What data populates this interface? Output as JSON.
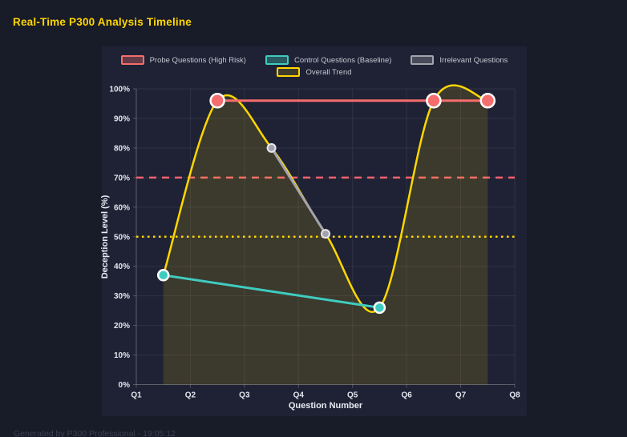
{
  "page": {
    "title": "Real-Time P300 Analysis Timeline",
    "footer": "Generated by P300 Professional - 19:05:12",
    "background": "#181b28",
    "panel_background": "#1f2234",
    "title_color": "#ffd700"
  },
  "chart_data": {
    "type": "line",
    "title": "Real-Time P300 Analysis Timeline",
    "xlabel": "Question Number",
    "ylabel": "Deception Level (%)",
    "xlim": [
      1,
      8
    ],
    "ylim": [
      0,
      100
    ],
    "grid": true,
    "legend_position": "top",
    "x_ticks": [
      {
        "value": 1,
        "label": "Q1"
      },
      {
        "value": 2,
        "label": "Q2"
      },
      {
        "value": 3,
        "label": "Q3"
      },
      {
        "value": 4,
        "label": "Q4"
      },
      {
        "value": 5,
        "label": "Q5"
      },
      {
        "value": 6,
        "label": "Q6"
      },
      {
        "value": 7,
        "label": "Q7"
      },
      {
        "value": 8,
        "label": "Q8"
      }
    ],
    "y_ticks": [
      {
        "value": 0,
        "label": "0%"
      },
      {
        "value": 10,
        "label": "10%"
      },
      {
        "value": 20,
        "label": "20%"
      },
      {
        "value": 30,
        "label": "30%"
      },
      {
        "value": 40,
        "label": "40%"
      },
      {
        "value": 50,
        "label": "50%"
      },
      {
        "value": 60,
        "label": "60%"
      },
      {
        "value": 70,
        "label": "70%"
      },
      {
        "value": 80,
        "label": "80%"
      },
      {
        "value": 90,
        "label": "90%"
      },
      {
        "value": 100,
        "label": "100%"
      }
    ],
    "series": [
      {
        "name": "Probe Questions (High Risk)",
        "color": "#f66d6d",
        "legend_fill": "rgba(246,109,109,0.32)",
        "points": [
          {
            "x": 2.5,
            "y": 96
          },
          {
            "x": 6.5,
            "y": 96
          },
          {
            "x": 7.5,
            "y": 96
          }
        ],
        "line_width": 3,
        "point_radius": 8.5,
        "point_border": "#ffffff",
        "point_border_width": 2.5,
        "smooth": false,
        "fill": null
      },
      {
        "name": "Control Questions (Baseline)",
        "color": "#3fccc0",
        "legend_fill": "rgba(63,204,192,0.32)",
        "points": [
          {
            "x": 1.5,
            "y": 37
          },
          {
            "x": 5.5,
            "y": 26
          }
        ],
        "line_width": 3,
        "point_radius": 6.5,
        "point_border": "#ffffff",
        "point_border_width": 2.5,
        "smooth": false,
        "fill": null
      },
      {
        "name": "Irrelevant Questions",
        "color": "#a3a3ae",
        "legend_fill": "rgba(163,163,174,0.32)",
        "points": [
          {
            "x": 3.5,
            "y": 80
          },
          {
            "x": 4.5,
            "y": 51
          }
        ],
        "line_width": 3,
        "point_radius": 5,
        "point_border": "#e8e8ee",
        "point_border_width": 2,
        "smooth": false,
        "fill": null
      },
      {
        "name": "Overall Trend",
        "color": "#ffd700",
        "legend_fill": "rgba(255,215,0,0.15)",
        "points": [
          {
            "x": 1.5,
            "y": 37
          },
          {
            "x": 2.5,
            "y": 96
          },
          {
            "x": 3.5,
            "y": 80
          },
          {
            "x": 4.5,
            "y": 51
          },
          {
            "x": 5.5,
            "y": 26
          },
          {
            "x": 6.5,
            "y": 96
          },
          {
            "x": 7.5,
            "y": 96
          }
        ],
        "line_width": 2.5,
        "point_radius": 0,
        "point_border": null,
        "point_border_width": 0,
        "smooth": true,
        "fill": "rgba(255,215,0,0.13)"
      }
    ],
    "thresholds": [
      {
        "value": 70,
        "color": "#f5606e",
        "dash": "9 7",
        "width": 2.5,
        "name": "high-risk-threshold"
      },
      {
        "value": 50,
        "color": "#ffd700",
        "dash": "2.5 4.5",
        "width": 2.5,
        "name": "baseline-threshold"
      }
    ],
    "legend_rows": [
      [
        0,
        1,
        2
      ],
      [
        3
      ]
    ],
    "style": {
      "grid_color": "rgba(255,255,255,0.07)",
      "axis_color": "rgba(255,255,255,0.22)",
      "tick_label_color": "#e4e6ef"
    }
  }
}
